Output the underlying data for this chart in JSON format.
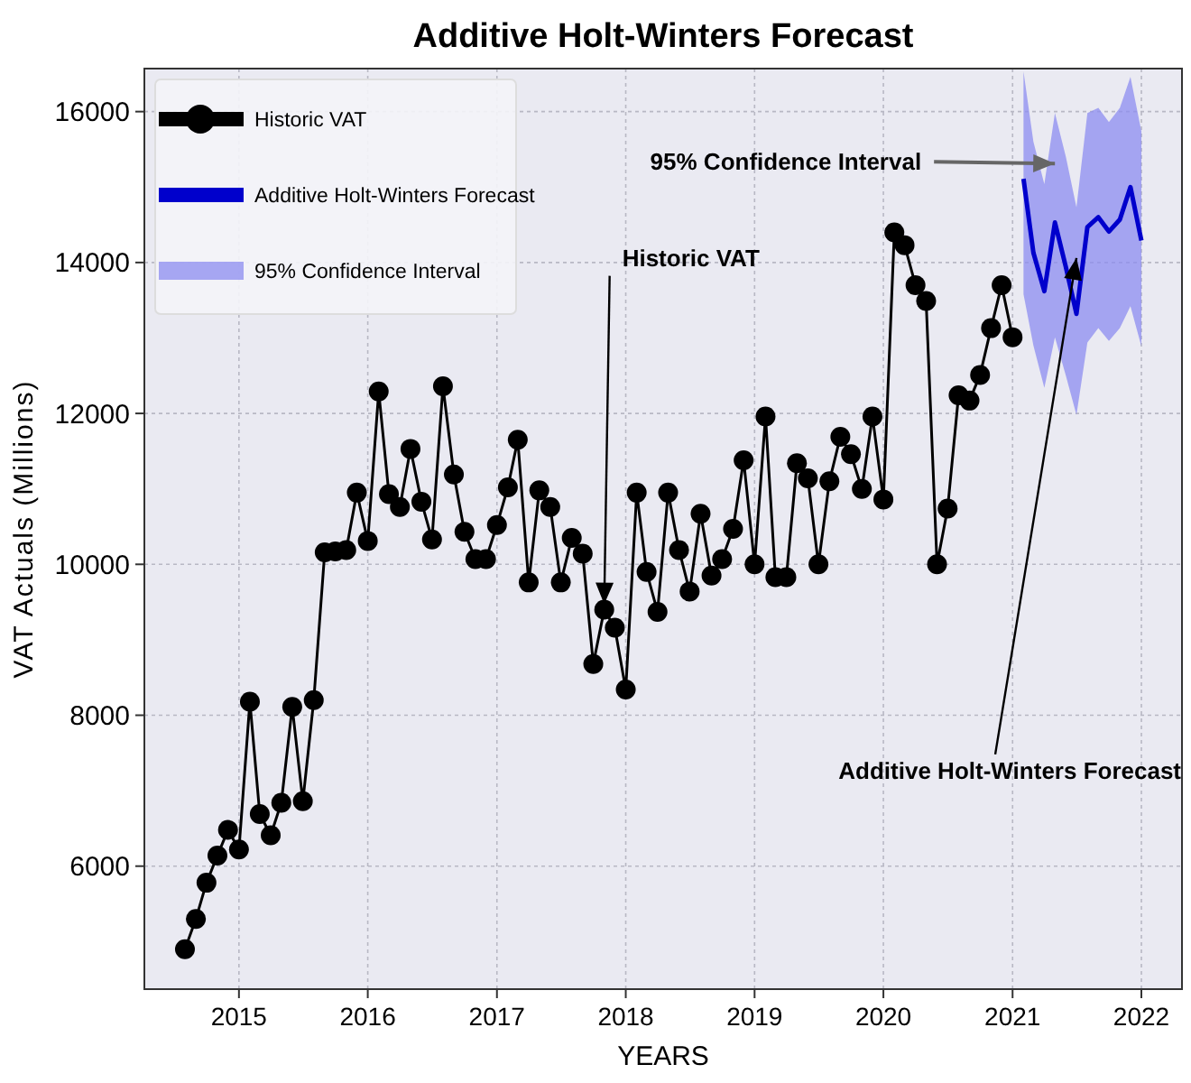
{
  "chart_data": {
    "type": "line",
    "title": "Additive Holt-Winters Forecast",
    "xlabel": "YEARS",
    "ylabel": "VAT Actuals (Millions)",
    "xlim": [
      "2014-04-08",
      "2022-04-26"
    ],
    "xticks": [
      {
        "value": "2015-01",
        "label": "2015"
      },
      {
        "value": "2016-01",
        "label": "2016"
      },
      {
        "value": "2017-01",
        "label": "2017"
      },
      {
        "value": "2018-01",
        "label": "2018"
      },
      {
        "value": "2019-01",
        "label": "2019"
      },
      {
        "value": "2020-01",
        "label": "2020"
      },
      {
        "value": "2021-01",
        "label": "2021"
      },
      {
        "value": "2022-01",
        "label": "2022"
      }
    ],
    "ylim": [
      4370,
      16570
    ],
    "yticks": [
      6000,
      8000,
      10000,
      12000,
      14000,
      16000
    ],
    "grid": true,
    "legend": "top left",
    "series": [
      {
        "name": "Historic VAT",
        "color": "#000000",
        "marker": "circle",
        "x": [
          "2014-08",
          "2014-09",
          "2014-10",
          "2014-11",
          "2014-12",
          "2015-01",
          "2015-02",
          "2015-03",
          "2015-04",
          "2015-05",
          "2015-06",
          "2015-07",
          "2015-08",
          "2015-09",
          "2015-10",
          "2015-11",
          "2015-12",
          "2016-01",
          "2016-02",
          "2016-03",
          "2016-04",
          "2016-05",
          "2016-06",
          "2016-07",
          "2016-08",
          "2016-09",
          "2016-10",
          "2016-11",
          "2016-12",
          "2017-01",
          "2017-02",
          "2017-03",
          "2017-04",
          "2017-05",
          "2017-06",
          "2017-07",
          "2017-08",
          "2017-09",
          "2017-10",
          "2017-11",
          "2017-12",
          "2018-01",
          "2018-02",
          "2018-03",
          "2018-04",
          "2018-05",
          "2018-06",
          "2018-07",
          "2018-08",
          "2018-09",
          "2018-10",
          "2018-11",
          "2018-12",
          "2019-01",
          "2019-02",
          "2019-03",
          "2019-04",
          "2019-05",
          "2019-06",
          "2019-07",
          "2019-08",
          "2019-09",
          "2019-10",
          "2019-11",
          "2019-12",
          "2020-01",
          "2020-02",
          "2020-03",
          "2020-04",
          "2020-05",
          "2020-06",
          "2020-07",
          "2020-08",
          "2020-09",
          "2020-10",
          "2020-11",
          "2020-12",
          "2021-01"
        ],
        "values": [
          4900,
          5300,
          5780,
          6140,
          6480,
          6220,
          8180,
          6690,
          6410,
          6840,
          8110,
          6860,
          8200,
          10160,
          10170,
          10190,
          10950,
          10310,
          12290,
          10930,
          10760,
          11530,
          10830,
          10330,
          12360,
          11190,
          10430,
          10070,
          10070,
          10520,
          11020,
          11650,
          9760,
          10980,
          10760,
          9760,
          10350,
          10140,
          8680,
          9400,
          9160,
          8340,
          10950,
          9900,
          9370,
          10950,
          10190,
          9640,
          10670,
          9850,
          10070,
          10470,
          11380,
          10000,
          11960,
          9830,
          9830,
          11340,
          11140,
          10000,
          11100,
          11690,
          11460,
          11000,
          11960,
          10860,
          14400,
          14230,
          13700,
          13490,
          10000,
          10740,
          12240,
          12170,
          12510,
          13130,
          13700,
          13010
        ]
      },
      {
        "name": "Additive Holt-Winters Forecast",
        "type": "line",
        "color": "#0000cc",
        "marker": "none",
        "x": [
          "2021-02",
          "2021-03",
          "2021-04",
          "2021-05",
          "2021-06",
          "2021-07",
          "2021-08",
          "2021-09",
          "2021-10",
          "2021-11",
          "2021-12",
          "2022-01"
        ],
        "values": [
          15110,
          14130,
          13620,
          14530,
          13940,
          13320,
          14470,
          14600,
          14410,
          14570,
          15000,
          14290
        ],
        "lower": [
          13580,
          12900,
          12340,
          13010,
          12500,
          11980,
          12940,
          13130,
          12960,
          13130,
          13420,
          12890
        ],
        "upper": [
          16530,
          15600,
          15040,
          15980,
          15400,
          14730,
          15980,
          16050,
          15860,
          16050,
          16460,
          15740
        ]
      },
      {
        "name": "95% Confidence Interval",
        "type": "area",
        "color": "#8c8cf0"
      }
    ],
    "annotations": [
      {
        "text": "Historic VAT",
        "x": "2017-11",
        "y": 9470
      },
      {
        "text": "95% Confidence Interval",
        "x": "2021-05",
        "y": 15310
      },
      {
        "text": "Additive Holt-Winters Forecast",
        "x": "2021-07",
        "y": 14060
      }
    ]
  }
}
